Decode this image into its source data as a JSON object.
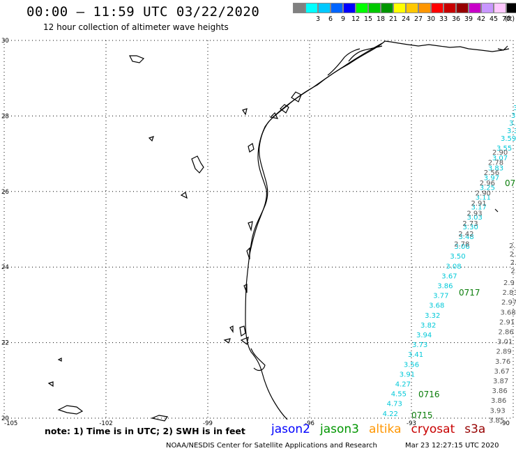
{
  "title": "00:00 – 11:59 UTC 03/22/2020",
  "subtitle": "12 hour collection of altimeter wave heights",
  "legend": {
    "unit": "(ft)",
    "levels": [
      {
        "label": "",
        "color": "#808080"
      },
      {
        "label": "3",
        "color": "#00ffff"
      },
      {
        "label": "6",
        "color": "#00c8ff"
      },
      {
        "label": "9",
        "color": "#0064ff"
      },
      {
        "label": "12",
        "color": "#0000ff"
      },
      {
        "label": "15",
        "color": "#00ff00"
      },
      {
        "label": "18",
        "color": "#00c800"
      },
      {
        "label": "21",
        "color": "#009600"
      },
      {
        "label": "24",
        "color": "#ffff00"
      },
      {
        "label": "27",
        "color": "#ffc800"
      },
      {
        "label": "30",
        "color": "#ff9600"
      },
      {
        "label": "33",
        "color": "#ff0000"
      },
      {
        "label": "36",
        "color": "#c80000"
      },
      {
        "label": "39",
        "color": "#960000"
      },
      {
        "label": "42",
        "color": "#c800c8"
      },
      {
        "label": "45",
        "color": "#c896ff"
      },
      {
        "label": "70",
        "color": "#ffc8ff"
      },
      {
        "label": "",
        "color": "#000000"
      }
    ]
  },
  "map": {
    "lon_range": [
      -105,
      -90
    ],
    "lat_range": [
      20,
      30
    ],
    "lon_ticks": [
      "-105",
      "-102",
      "-99",
      "-96",
      "-93",
      "-90"
    ],
    "lat_ticks": [
      "30",
      "28",
      "26",
      "24",
      "22",
      "20"
    ]
  },
  "tracks": {
    "cyan_main": [
      "3.59",
      "3.55",
      "3.07",
      "3.83",
      "3.97",
      "3.25",
      "3.11",
      "3.17",
      "3.03",
      "3.30",
      "3.48",
      "3.06",
      "3.50",
      "3.08",
      "3.67",
      "3.86",
      "3.77",
      "3.68",
      "3.32",
      "3.82",
      "3.94",
      "3.73",
      "3.41",
      "3.56",
      "3.91",
      "4.27",
      "4.55",
      "4.73",
      "4.22"
    ],
    "cyan_top_partial": [
      "3",
      "3.6",
      "3.6",
      "3.3"
    ],
    "gray_main": [
      "2.90",
      "2.78",
      "2.56",
      "2.96",
      "2.90",
      "2.91",
      "2.93",
      "2.73",
      "2.42",
      "2.78"
    ],
    "right_track": [
      "2.9",
      "2.83",
      "2.97",
      "3.68",
      "2.91",
      "2.86",
      "3.01",
      "2.89",
      "3.76",
      "3.67",
      "3.87",
      "3.86",
      "3.86",
      "3.93",
      "3.85"
    ],
    "right_partial": [
      "2.",
      "2.",
      "2.",
      "2.7"
    ],
    "pass_labels": [
      "07",
      "0717",
      "0716",
      "0715"
    ]
  },
  "note": "note: 1) Time is in UTC; 2) SWH is in feet",
  "satellites": [
    {
      "name": "jason2",
      "color": "#0000ff"
    },
    {
      "name": "jason3",
      "color": "#009600"
    },
    {
      "name": "altika",
      "color": "#ff9600"
    },
    {
      "name": "cryosat",
      "color": "#c80000"
    },
    {
      "name": "s3a",
      "color": "#960000"
    }
  ],
  "footer": "NOAA/NESDIS Center for Satellite Applications and Research",
  "footer_time": "Mar 23 12:27:15 UTC 2020"
}
